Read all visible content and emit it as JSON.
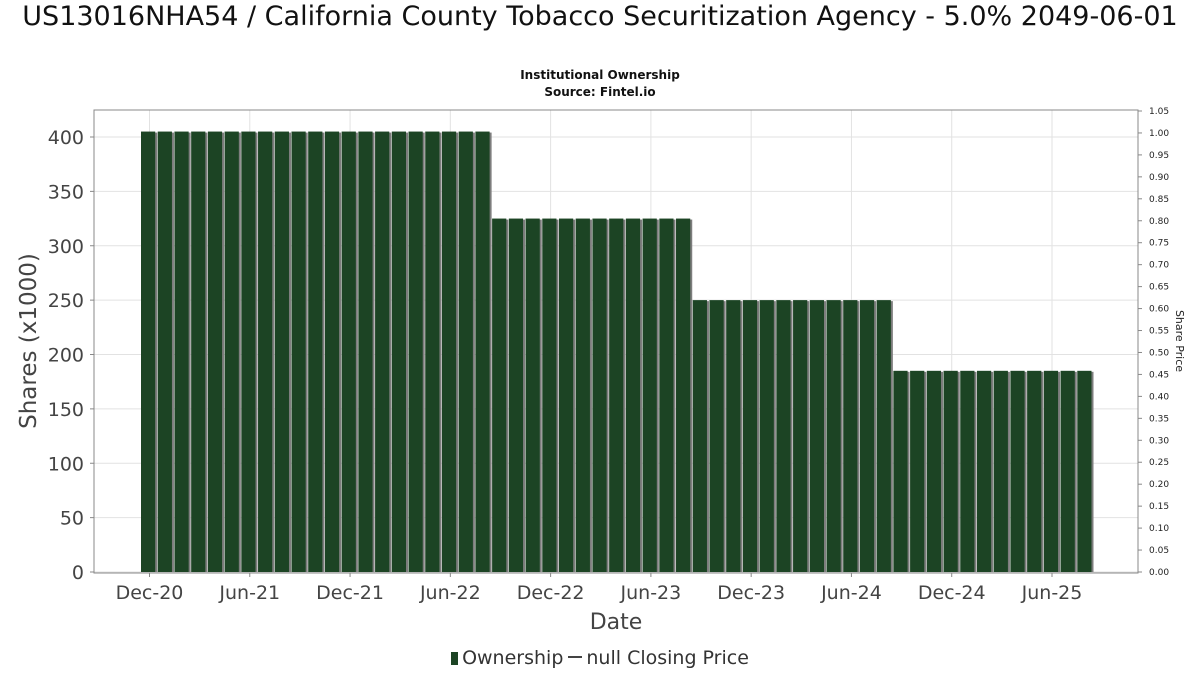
{
  "title": "US13016NHA54 / California County Tobacco Securitization Agency - 5.0% 2049-06-01",
  "subtitle": "Institutional Ownership",
  "source": "Source: Fintel.io",
  "legend": {
    "ownership": "Ownership",
    "price": "null Closing Price"
  },
  "colors": {
    "bar": "#1c4424",
    "bar_shadow": "#7d7d7d",
    "grid": "#e2e2e2",
    "axis": "#888888"
  },
  "chart_data": {
    "type": "bar",
    "xlabel": "Date",
    "ylabel": "Shares (x1000)",
    "y2label": "Share Price",
    "ylim": [
      0,
      420
    ],
    "yticks": [
      "0",
      "50",
      "100",
      "150",
      "200",
      "250",
      "300",
      "350",
      "400"
    ],
    "y2lim": [
      0,
      1.05
    ],
    "y2ticks": [
      "0.00",
      "0.05",
      "0.10",
      "0.15",
      "0.20",
      "0.25",
      "0.30",
      "0.35",
      "0.40",
      "0.45",
      "0.50",
      "0.55",
      "0.60",
      "0.65",
      "0.70",
      "0.75",
      "0.80",
      "0.85",
      "0.90",
      "0.95",
      "1.00",
      "1.05"
    ],
    "xtick_labels": [
      "Dec-20",
      "Jun-21",
      "Dec-21",
      "Jun-22",
      "Dec-22",
      "Jun-23",
      "Dec-23",
      "Jun-24",
      "Dec-24",
      "Jun-25"
    ],
    "grid": true,
    "legend_position": "bottom",
    "series": [
      {
        "name": "Ownership",
        "values": [
          405,
          405,
          405,
          405,
          405,
          405,
          405,
          405,
          405,
          405,
          405,
          405,
          405,
          405,
          405,
          405,
          405,
          405,
          405,
          405,
          405,
          325,
          325,
          325,
          325,
          325,
          325,
          325,
          325,
          325,
          325,
          325,
          325,
          250,
          250,
          250,
          250,
          250,
          250,
          250,
          250,
          250,
          250,
          250,
          250,
          185,
          185,
          185,
          185,
          185,
          185,
          185,
          185,
          185,
          185,
          185,
          185
        ]
      }
    ]
  }
}
